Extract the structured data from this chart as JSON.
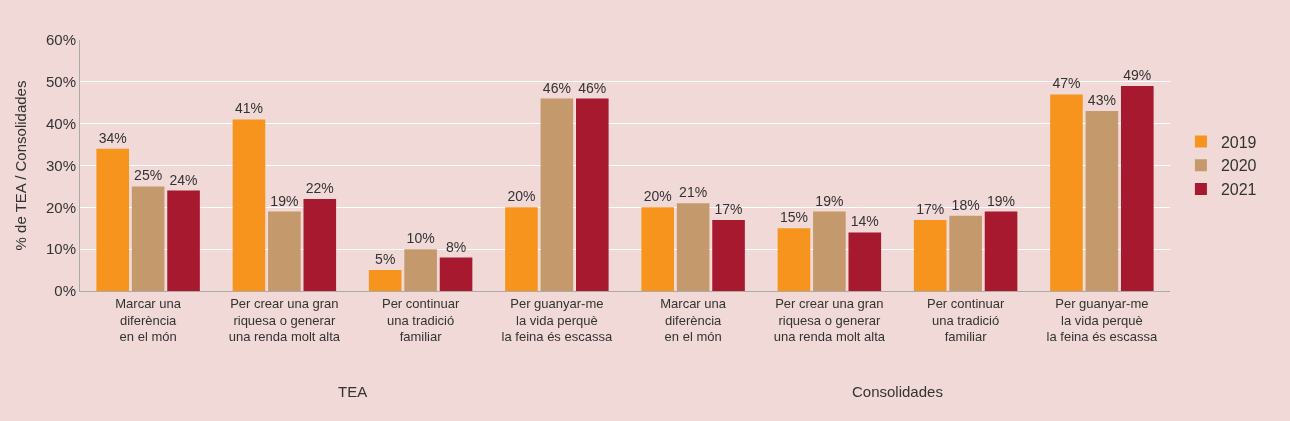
{
  "chart_data": {
    "type": "bar",
    "ylabel": "% de TEA / Consolidades",
    "categories": [
      "Marcar una\ndiferència\nen el món",
      "Per crear una gran\nriquesa o generar\nuna renda molt alta",
      "Per continuar\nuna tradició\nfamiliar",
      "Per guanyar-me\nla vida perquè\nla feina és escassa",
      "Marcar una\ndiferència\nen el món",
      "Per crear una gran\nriquesa o generar\nuna renda molt alta",
      "Per continuar\nuna tradició\nfamiliar",
      "Per guanyar-me\nla vida perquè\nla feina és escassa"
    ],
    "series": [
      {
        "name": "2019",
        "color": "#f7941d",
        "values": [
          34,
          41,
          5,
          20,
          20,
          15,
          17,
          47
        ],
        "value_labels": [
          "34%",
          "41%",
          "5%",
          "20%",
          "20%",
          "15%",
          "17%",
          "47%"
        ]
      },
      {
        "name": "2020",
        "color": "#c49a6c",
        "values": [
          25,
          19,
          10,
          46,
          21,
          19,
          18,
          43
        ],
        "value_labels": [
          "25%",
          "19%",
          "10%",
          "46%",
          "21%",
          "19%",
          "18%",
          "43%"
        ]
      },
      {
        "name": "2021",
        "color": "#a6192e",
        "values": [
          24,
          22,
          8,
          46,
          17,
          14,
          19,
          49
        ],
        "value_labels": [
          "24%",
          "22%",
          "8%",
          "46%",
          "17%",
          "14%",
          "19%",
          "49%"
        ]
      }
    ],
    "annotations": [
      "TEA",
      "Consolidades"
    ],
    "ylim": [
      0,
      60
    ],
    "yticks": [
      {
        "value": 0,
        "label": "0%"
      },
      {
        "value": 10,
        "label": "10%"
      },
      {
        "value": 20,
        "label": "20%"
      },
      {
        "value": 30,
        "label": "30%"
      },
      {
        "value": 40,
        "label": "40%"
      },
      {
        "value": 50,
        "label": "50%"
      },
      {
        "value": 60,
        "label": "60%"
      }
    ],
    "grid": "y",
    "legend": "right"
  }
}
